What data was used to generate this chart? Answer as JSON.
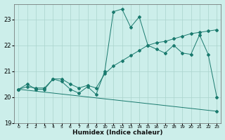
{
  "xlabel": "Humidex (Indice chaleur)",
  "ylabel": "",
  "bg_color": "#cceeea",
  "grid_color": "#aad4cc",
  "line_color": "#1a7a6e",
  "xlim": [
    -0.5,
    23.5
  ],
  "ylim": [
    19.0,
    23.6
  ],
  "yticks": [
    19,
    20,
    21,
    22,
    23
  ],
  "xticks": [
    0,
    1,
    2,
    3,
    4,
    5,
    6,
    7,
    8,
    9,
    10,
    11,
    12,
    13,
    14,
    15,
    16,
    17,
    18,
    19,
    20,
    21,
    22,
    23
  ],
  "series1_x": [
    0,
    1,
    2,
    3,
    4,
    5,
    6,
    7,
    8,
    9,
    10,
    11,
    12,
    13,
    14,
    15,
    16,
    17,
    18,
    19,
    20,
    21,
    22,
    23
  ],
  "series1_y": [
    20.3,
    20.5,
    20.3,
    20.3,
    20.7,
    20.6,
    20.3,
    20.15,
    20.4,
    20.1,
    21.0,
    23.3,
    23.4,
    22.7,
    23.1,
    22.0,
    21.85,
    21.7,
    22.0,
    21.7,
    21.65,
    22.4,
    21.65,
    20.0
  ],
  "series2_x": [
    0,
    1,
    2,
    3,
    4,
    5,
    6,
    7,
    8,
    9,
    10,
    11,
    12,
    13,
    14,
    15,
    16,
    17,
    18,
    19,
    20,
    21,
    22,
    23
  ],
  "series2_y": [
    20.3,
    20.4,
    20.35,
    20.35,
    20.7,
    20.7,
    20.5,
    20.35,
    20.45,
    20.35,
    20.9,
    21.2,
    21.4,
    21.6,
    21.8,
    22.0,
    22.1,
    22.15,
    22.25,
    22.35,
    22.45,
    22.5,
    22.55,
    22.6
  ],
  "series3_x": [
    0,
    23
  ],
  "series3_y": [
    20.3,
    19.45
  ]
}
